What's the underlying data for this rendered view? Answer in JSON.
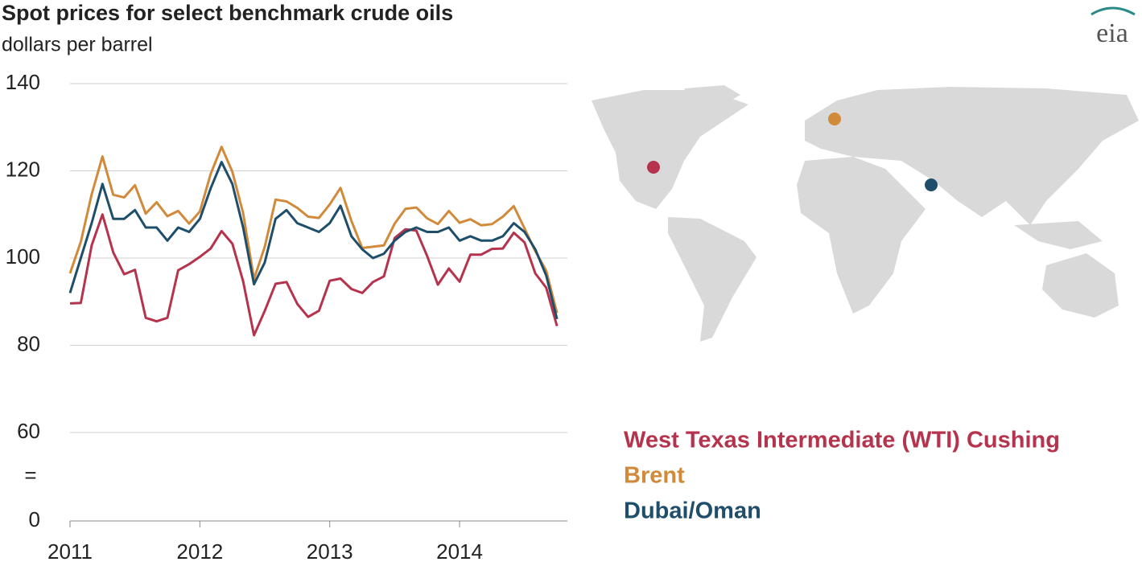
{
  "chart_data": {
    "type": "line",
    "title": "Spot prices for select benchmark crude oils",
    "subtitle": "dollars per barrel",
    "logo": "eia",
    "axis_break_label": "=",
    "x": [
      2011,
      2011.083,
      2011.167,
      2011.25,
      2011.333,
      2011.417,
      2011.5,
      2011.583,
      2011.667,
      2011.75,
      2011.833,
      2011.917,
      2012,
      2012.083,
      2012.167,
      2012.25,
      2012.333,
      2012.417,
      2012.5,
      2012.583,
      2012.667,
      2012.75,
      2012.833,
      2012.917,
      2013,
      2013.083,
      2013.167,
      2013.25,
      2013.333,
      2013.417,
      2013.5,
      2013.583,
      2013.667,
      2013.75,
      2013.833,
      2013.917,
      2014,
      2014.083,
      2014.167,
      2014.25,
      2014.333,
      2014.417,
      2014.5,
      2014.583,
      2014.667,
      2014.75
    ],
    "series": [
      {
        "name": "West Texas Intermediate (WTI) Cushing",
        "color": "#b5334d",
        "values": [
          89.6,
          89.7,
          102.9,
          110,
          101.3,
          96.3,
          97.3,
          86.3,
          85.5,
          86.3,
          97.2,
          98.6,
          100.3,
          102.2,
          106.2,
          103.3,
          94.7,
          82.3,
          87.9,
          94.1,
          94.5,
          89.5,
          86.5,
          87.9,
          94.8,
          95.3,
          92.9,
          92.0,
          94.5,
          95.8,
          104.6,
          106.6,
          106.3,
          100.5,
          93.9,
          97.6,
          94.6,
          100.8,
          100.8,
          102.1,
          102.2,
          105.8,
          103.6,
          96.5,
          93.2,
          84.4
        ]
      },
      {
        "name": "Brent",
        "color": "#d08a3a",
        "values": [
          96.5,
          103.7,
          114.6,
          123.3,
          114.5,
          113.9,
          116.7,
          110.2,
          112.8,
          109.6,
          110.8,
          107.9,
          110.7,
          119.3,
          125.5,
          119.8,
          110.3,
          95.2,
          102.6,
          113.4,
          113.0,
          111.5,
          109.5,
          109.2,
          112.3,
          116.1,
          108.5,
          102.3,
          102.6,
          102.9,
          107.9,
          111.3,
          111.6,
          109.1,
          107.8,
          110.8,
          108.1,
          108.9,
          107.5,
          107.8,
          109.5,
          111.9,
          106.8,
          101.6,
          97.1,
          87.4
        ]
      },
      {
        "name": "Dubai/Oman",
        "color": "#1f4e6b",
        "values": [
          92,
          100,
          108,
          117,
          109,
          109,
          111,
          107,
          107,
          104,
          107,
          106,
          109,
          116,
          122,
          117,
          107,
          94,
          99,
          109,
          111,
          108,
          107,
          106,
          108,
          112,
          105,
          102,
          100,
          101,
          104,
          106,
          107,
          106,
          106,
          107,
          104,
          105,
          104,
          104,
          105,
          108,
          106,
          102,
          96,
          86
        ]
      }
    ],
    "xlim": [
      2011,
      2014.83
    ],
    "xticks": [
      2011,
      2012,
      2013,
      2014
    ],
    "ylim": [
      0,
      140
    ],
    "yticks": [
      0,
      60,
      80,
      100,
      120,
      140
    ],
    "grid": true
  }
}
